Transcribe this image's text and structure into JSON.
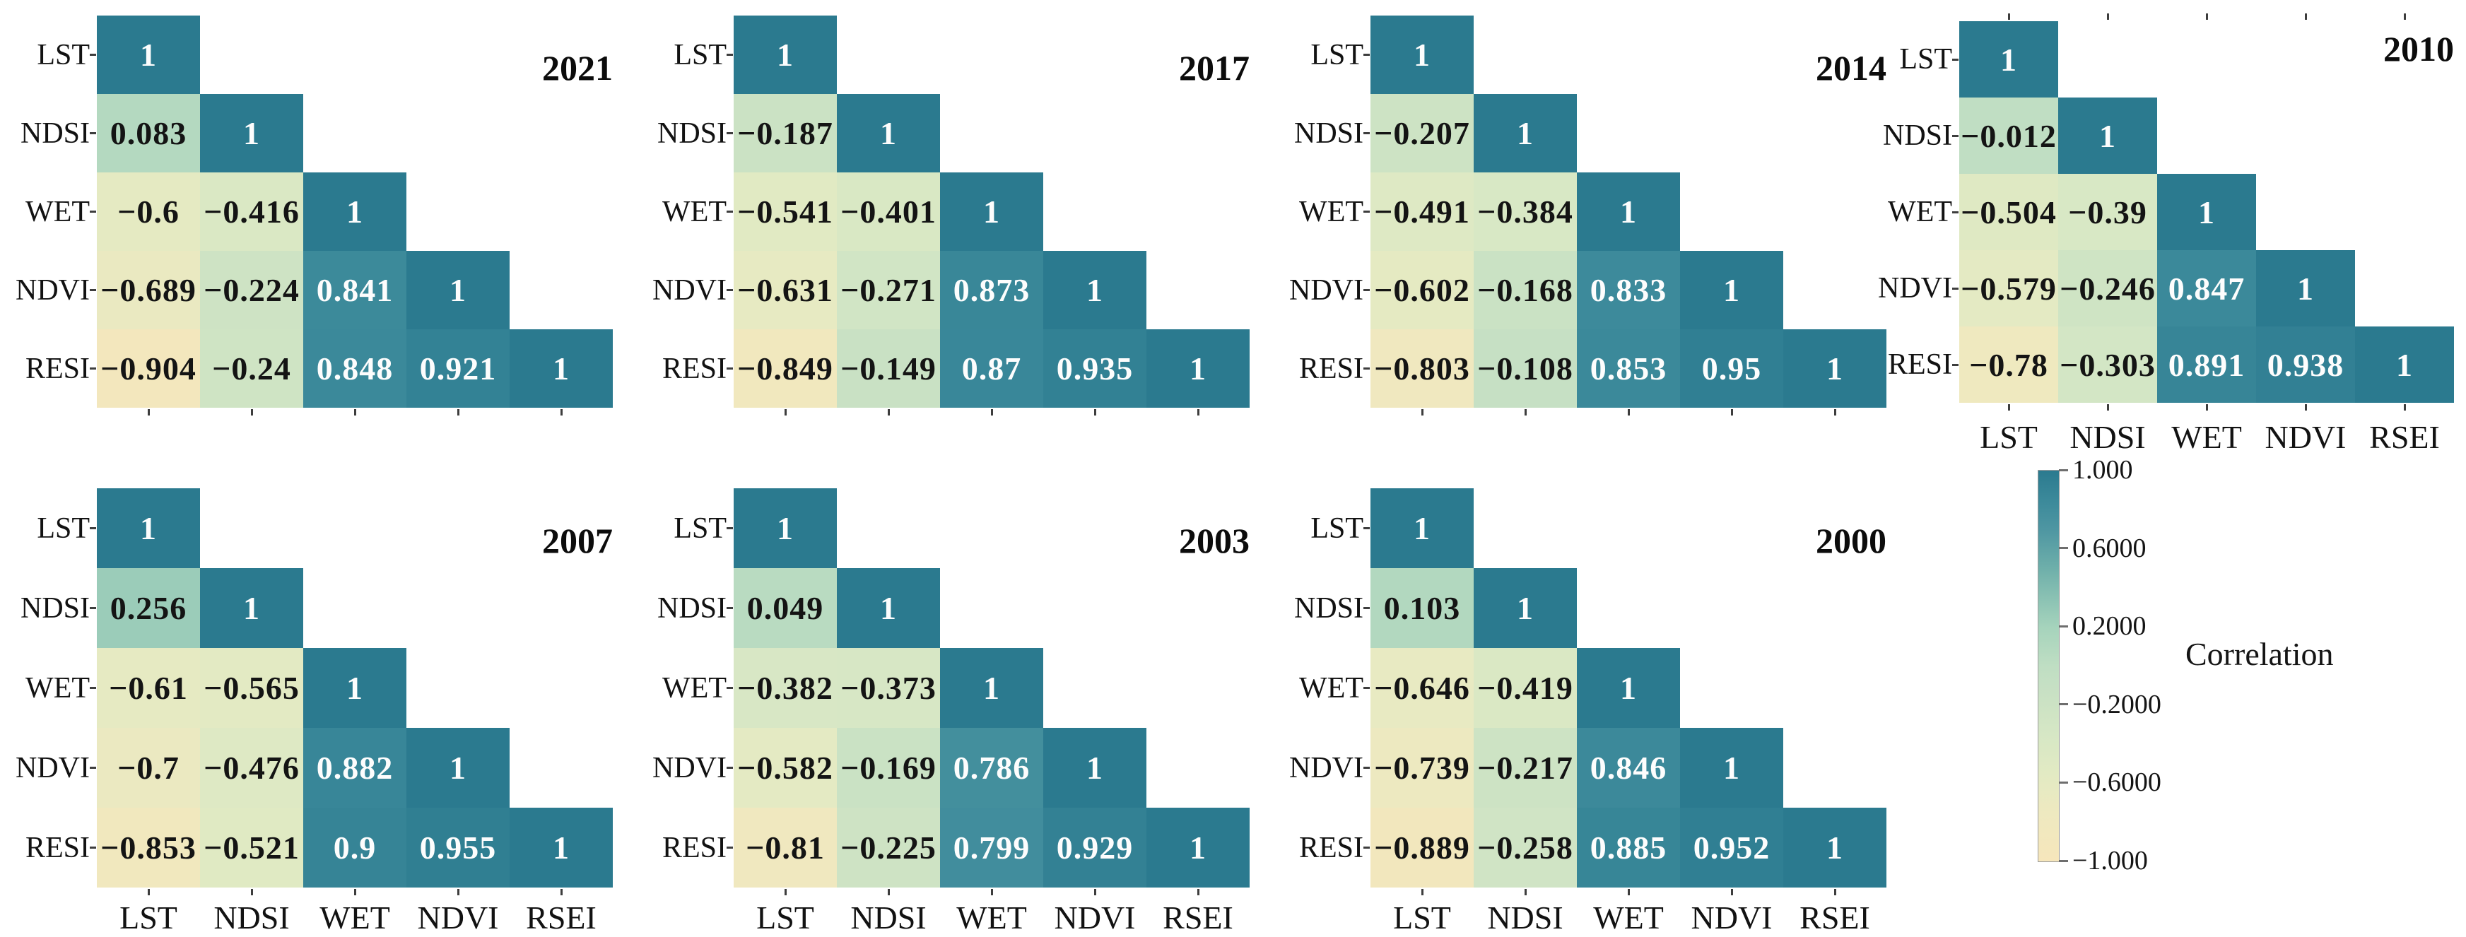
{
  "chart_data": {
    "type": "heatmap",
    "subtype": "lower-triangular-correlation-matrix-small-multiples",
    "row_labels": [
      "LST",
      "NDSI",
      "WET",
      "NDVI",
      "RESI"
    ],
    "col_labels": [
      "LST",
      "NDSI",
      "WET",
      "NDVI",
      "RSEI"
    ],
    "value_range": [
      -1,
      1
    ],
    "panels": [
      {
        "title": "2021",
        "show_col_labels": false,
        "matrix": [
          [
            1
          ],
          [
            0.083,
            1
          ],
          [
            -0.6,
            -0.416,
            1
          ],
          [
            -0.689,
            -0.224,
            0.841,
            1
          ],
          [
            -0.904,
            -0.24,
            0.848,
            0.921,
            1
          ]
        ]
      },
      {
        "title": "2017",
        "show_col_labels": false,
        "matrix": [
          [
            1
          ],
          [
            -0.187,
            1
          ],
          [
            -0.541,
            -0.401,
            1
          ],
          [
            -0.631,
            -0.271,
            0.873,
            1
          ],
          [
            -0.849,
            -0.149,
            0.87,
            0.935,
            1
          ]
        ]
      },
      {
        "title": "2014",
        "show_col_labels": false,
        "matrix": [
          [
            1
          ],
          [
            -0.207,
            1
          ],
          [
            -0.491,
            -0.384,
            1
          ],
          [
            -0.602,
            -0.168,
            0.833,
            1
          ],
          [
            -0.803,
            -0.108,
            0.853,
            0.95,
            1
          ]
        ]
      },
      {
        "title": "2010",
        "show_col_labels": true,
        "matrix": [
          [
            1
          ],
          [
            -0.012,
            1
          ],
          [
            -0.504,
            -0.39,
            1
          ],
          [
            -0.579,
            -0.246,
            0.847,
            1
          ],
          [
            -0.78,
            -0.303,
            0.891,
            0.938,
            1
          ]
        ]
      },
      {
        "title": "2007",
        "show_col_labels": true,
        "matrix": [
          [
            1
          ],
          [
            0.256,
            1
          ],
          [
            -0.61,
            -0.565,
            1
          ],
          [
            -0.7,
            -0.476,
            0.882,
            1
          ],
          [
            -0.853,
            -0.521,
            0.9,
            0.955,
            1
          ]
        ]
      },
      {
        "title": "2003",
        "show_col_labels": true,
        "matrix": [
          [
            1
          ],
          [
            0.049,
            1
          ],
          [
            -0.382,
            -0.373,
            1
          ],
          [
            -0.582,
            -0.169,
            0.786,
            1
          ],
          [
            -0.81,
            -0.225,
            0.799,
            0.929,
            1
          ]
        ]
      },
      {
        "title": "2000",
        "show_col_labels": true,
        "matrix": [
          [
            1
          ],
          [
            0.103,
            1
          ],
          [
            -0.646,
            -0.419,
            1
          ],
          [
            -0.739,
            -0.217,
            0.846,
            1
          ],
          [
            -0.889,
            -0.258,
            0.885,
            0.952,
            1
          ]
        ]
      }
    ],
    "colorbar": {
      "title": "Correlation",
      "ticks": [
        {
          "value": 1,
          "label": "1.000"
        },
        {
          "value": 0.6,
          "label": "0.6000"
        },
        {
          "value": 0.2,
          "label": "0.2000"
        },
        {
          "value": -0.2,
          "label": "−0.2000"
        },
        {
          "value": -0.6,
          "label": "−0.6000"
        },
        {
          "value": -1,
          "label": "−1.000"
        }
      ]
    }
  },
  "palette": {
    "stops": [
      {
        "v": -1,
        "color": "#f6e6bb"
      },
      {
        "v": -0.75,
        "color": "#eee9c0"
      },
      {
        "v": -0.55,
        "color": "#e2eac3"
      },
      {
        "v": -0.35,
        "color": "#d6e7c5"
      },
      {
        "v": -0.15,
        "color": "#c9e1c4"
      },
      {
        "v": 0,
        "color": "#bfdec3"
      },
      {
        "v": 0.2,
        "color": "#a5d3bc"
      },
      {
        "v": 0.5,
        "color": "#6eafaa"
      },
      {
        "v": 0.7,
        "color": "#4e96a2"
      },
      {
        "v": 0.85,
        "color": "#3b899a"
      },
      {
        "v": 1,
        "color": "#2b7a8f"
      }
    ]
  },
  "value_text_colors": {
    "high": "#fdfdfd",
    "low": "#141414",
    "white_text_threshold": 0.7
  }
}
